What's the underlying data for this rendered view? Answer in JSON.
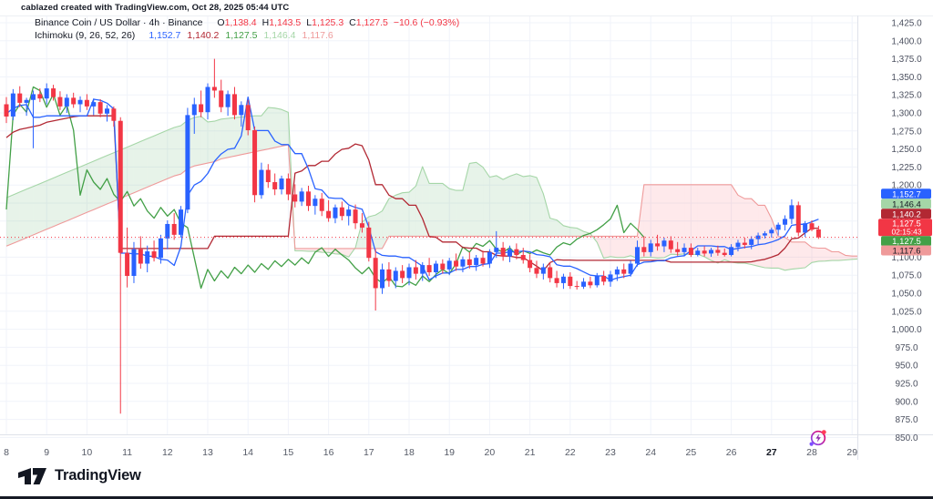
{
  "attribution": "cablazed created with TradingView.com, Oct 28, 2025 05:44 UTC",
  "legend": {
    "title": "Binance Coin / US Dollar · 4h · Binance",
    "ohlc": [
      {
        "label": "O",
        "value": "1,138.4"
      },
      {
        "label": "H",
        "value": "1,143.5"
      },
      {
        "label": "L",
        "value": "1,125.3"
      },
      {
        "label": "C",
        "value": "1,127.5"
      }
    ],
    "change": "−10.6 (−0.93%)",
    "indicator": {
      "name": "Ichimoku (9, 26, 52, 26)",
      "values": [
        {
          "name": "conversion-line",
          "text": "1,152.7",
          "color": "#2962FF"
        },
        {
          "name": "base-line",
          "text": "1,140.2",
          "color": "#B22833"
        },
        {
          "name": "lagging-span",
          "text": "1,127.5",
          "color": "#43A047"
        },
        {
          "name": "leading-span-a",
          "text": "1,146.4",
          "color": "#A5D6A7"
        },
        {
          "name": "leading-span-b",
          "text": "1,117.6",
          "color": "#EF9A9A"
        }
      ]
    }
  },
  "price_axis": {
    "labels": [
      "1,425.0",
      "1,400.0",
      "1,375.0",
      "1,350.0",
      "1,325.0",
      "1,300.0",
      "1,275.0",
      "1,250.0",
      "1,225.0",
      "1,200.0",
      "1,175.0",
      "1,150.0",
      "1,125.0",
      "1,100.0",
      "1,075.0",
      "1,050.0",
      "1,025.0",
      "1,000.0",
      "975.0",
      "950.0",
      "925.0",
      "900.0",
      "875.0",
      "850.0"
    ],
    "max": 1425,
    "min": 850,
    "step": 25
  },
  "time_axis": {
    "labels": [
      "8",
      "9",
      "10",
      "11",
      "12",
      "13",
      "14",
      "15",
      "16",
      "17",
      "18",
      "19",
      "20",
      "21",
      "22",
      "23",
      "24",
      "25",
      "26",
      "27",
      "28",
      "29"
    ],
    "bold_label": "27"
  },
  "price_tags": [
    {
      "name": "conversion-tag",
      "text": "1,152.7",
      "bg": "#2962FF",
      "fg": "#FFFFFF"
    },
    {
      "name": "leading-a-tag",
      "text": "1,146.4",
      "bg": "#A5D6A7",
      "fg": "#131722"
    },
    {
      "name": "base-tag",
      "text": "1,140.2",
      "bg": "#B22833",
      "fg": "#FFFFFF"
    },
    {
      "name": "last-price-tag",
      "text": "1,127.5",
      "countdown": "02:15:43",
      "bg": "#F23645",
      "fg": "#FFFFFF"
    },
    {
      "name": "lagging-tag",
      "text": "1,127.5",
      "bg": "#43A047",
      "fg": "#FFFFFF"
    },
    {
      "name": "leading-b-tag",
      "text": "1,117.6",
      "bg": "#EF9A9A",
      "fg": "#131722"
    }
  ],
  "branding": {
    "logo_text": "TradingView"
  },
  "chart_data": {
    "type": "candlestick",
    "timeframe": "4h",
    "last_price": 1127.5,
    "prev_close": 1138.1,
    "up_color": "#2962FF",
    "down_color": "#F23645",
    "indicator": {
      "type": "ichimoku",
      "params": [
        9,
        26,
        52,
        26
      ],
      "displacement": 26,
      "conversion": 1152.7,
      "base": 1140.2,
      "lagging": 1127.5,
      "leading_a": 1146.4,
      "leading_b": 1117.6,
      "colors": {
        "conversion": "#2962FF",
        "base": "#B22833",
        "lagging": "#43A047",
        "leading_a": "#A5D6A7",
        "leading_b": "#EF9A9A",
        "cloud_up": "rgba(103,183,119,0.16)",
        "cloud_down": "rgba(242,54,69,0.11)"
      }
    },
    "candles_ohlc": [
      [
        1312,
        1322,
        1286,
        1295
      ],
      [
        1295,
        1333,
        1290,
        1327
      ],
      [
        1327,
        1337,
        1308,
        1314
      ],
      [
        1314,
        1321,
        1296,
        1318
      ],
      [
        1318,
        1331,
        1251,
        1326
      ],
      [
        1326,
        1334,
        1315,
        1320
      ],
      [
        1320,
        1341,
        1312,
        1334
      ],
      [
        1334,
        1339,
        1317,
        1322
      ],
      [
        1322,
        1330,
        1304,
        1309
      ],
      [
        1309,
        1326,
        1300,
        1321
      ],
      [
        1321,
        1328,
        1307,
        1312
      ],
      [
        1312,
        1323,
        1301,
        1318
      ],
      [
        1318,
        1326,
        1304,
        1309
      ],
      [
        1309,
        1320,
        1297,
        1315
      ],
      [
        1315,
        1319,
        1294,
        1299
      ],
      [
        1299,
        1311,
        1288,
        1306
      ],
      [
        1306,
        1309,
        1281,
        1289
      ],
      [
        1289,
        1294,
        883,
        1106
      ],
      [
        1106,
        1141,
        1058,
        1074
      ],
      [
        1074,
        1121,
        1064,
        1111
      ],
      [
        1111,
        1129,
        1084,
        1091
      ],
      [
        1091,
        1116,
        1079,
        1108
      ],
      [
        1108,
        1123,
        1094,
        1099
      ],
      [
        1099,
        1131,
        1091,
        1126
      ],
      [
        1126,
        1151,
        1111,
        1146
      ],
      [
        1146,
        1161,
        1124,
        1131
      ],
      [
        1131,
        1171,
        1127,
        1166
      ],
      [
        1166,
        1307,
        1161,
        1297
      ],
      [
        1297,
        1321,
        1271,
        1312
      ],
      [
        1312,
        1331,
        1294,
        1301
      ],
      [
        1301,
        1341,
        1291,
        1336
      ],
      [
        1336,
        1375,
        1321,
        1331
      ],
      [
        1331,
        1346,
        1301,
        1308
      ],
      [
        1308,
        1331,
        1296,
        1326
      ],
      [
        1326,
        1336,
        1291,
        1297
      ],
      [
        1297,
        1316,
        1281,
        1311
      ],
      [
        1311,
        1318,
        1269,
        1276
      ],
      [
        1276,
        1281,
        1176,
        1186
      ],
      [
        1186,
        1231,
        1181,
        1221
      ],
      [
        1221,
        1229,
        1196,
        1204
      ],
      [
        1204,
        1216,
        1186,
        1194
      ],
      [
        1194,
        1213,
        1187,
        1209
      ],
      [
        1209,
        1216,
        1179,
        1187
      ],
      [
        1187,
        1201,
        1169,
        1177
      ],
      [
        1177,
        1196,
        1171,
        1191
      ],
      [
        1191,
        1199,
        1164,
        1171
      ],
      [
        1171,
        1186,
        1159,
        1181
      ],
      [
        1181,
        1189,
        1157,
        1164
      ],
      [
        1164,
        1179,
        1149,
        1154
      ],
      [
        1154,
        1173,
        1147,
        1169
      ],
      [
        1169,
        1177,
        1151,
        1157
      ],
      [
        1157,
        1171,
        1144,
        1166
      ],
      [
        1166,
        1173,
        1139,
        1147
      ],
      [
        1147,
        1161,
        1134,
        1141
      ],
      [
        1141,
        1149,
        1094,
        1099
      ],
      [
        1099,
        1111,
        1026,
        1057
      ],
      [
        1057,
        1091,
        1049,
        1083
      ],
      [
        1083,
        1093,
        1059,
        1067
      ],
      [
        1067,
        1086,
        1057,
        1081
      ],
      [
        1081,
        1089,
        1064,
        1071
      ],
      [
        1071,
        1091,
        1061,
        1086
      ],
      [
        1086,
        1096,
        1069,
        1077
      ],
      [
        1077,
        1093,
        1067,
        1089
      ],
      [
        1089,
        1099,
        1074,
        1079
      ],
      [
        1079,
        1095,
        1071,
        1091
      ],
      [
        1091,
        1097,
        1077,
        1083
      ],
      [
        1083,
        1099,
        1075,
        1095
      ],
      [
        1095,
        1105,
        1081,
        1087
      ],
      [
        1087,
        1101,
        1079,
        1097
      ],
      [
        1097,
        1107,
        1084,
        1089
      ],
      [
        1089,
        1103,
        1081,
        1099
      ],
      [
        1099,
        1109,
        1087,
        1091
      ],
      [
        1091,
        1111,
        1085,
        1107
      ],
      [
        1107,
        1136,
        1099,
        1113
      ],
      [
        1113,
        1121,
        1095,
        1101
      ],
      [
        1101,
        1116,
        1093,
        1111
      ],
      [
        1111,
        1119,
        1097,
        1103
      ],
      [
        1103,
        1113,
        1091,
        1096
      ],
      [
        1096,
        1104,
        1079,
        1085
      ],
      [
        1085,
        1095,
        1071,
        1077
      ],
      [
        1077,
        1091,
        1069,
        1086
      ],
      [
        1086,
        1093,
        1065,
        1071
      ],
      [
        1071,
        1081,
        1058,
        1064
      ],
      [
        1064,
        1077,
        1056,
        1073
      ],
      [
        1073,
        1079,
        1056,
        1060
      ],
      [
        1060,
        1067,
        1055.1,
        1059
      ],
      [
        1059,
        1071,
        1056,
        1066
      ],
      [
        1066,
        1073,
        1057,
        1061
      ],
      [
        1061,
        1078,
        1058,
        1074
      ],
      [
        1074,
        1081,
        1061,
        1066
      ],
      [
        1066,
        1081,
        1059,
        1076
      ],
      [
        1076,
        1087,
        1067,
        1083
      ],
      [
        1083,
        1091,
        1071,
        1077
      ],
      [
        1077,
        1095,
        1073,
        1091
      ],
      [
        1091,
        1123,
        1087,
        1114
      ],
      [
        1114,
        1129,
        1101,
        1107
      ],
      [
        1107,
        1124,
        1101,
        1119
      ],
      [
        1119,
        1131,
        1109,
        1115
      ],
      [
        1115,
        1127,
        1107,
        1123
      ],
      [
        1123,
        1129,
        1106,
        1111
      ],
      [
        1111,
        1121,
        1102,
        1107
      ],
      [
        1107,
        1119,
        1101,
        1113
      ],
      [
        1113,
        1119,
        1100.3,
        1103
      ],
      [
        1103,
        1113,
        1101,
        1109
      ],
      [
        1109,
        1115,
        1101,
        1105
      ],
      [
        1105,
        1113,
        1100.5,
        1110
      ],
      [
        1110,
        1116,
        1102,
        1106
      ],
      [
        1106,
        1112,
        1100.8,
        1103
      ],
      [
        1103,
        1118,
        1101,
        1114
      ],
      [
        1114,
        1124,
        1108,
        1120
      ],
      [
        1120,
        1127,
        1112,
        1117
      ],
      [
        1117,
        1129,
        1111,
        1125
      ],
      [
        1125,
        1134,
        1118,
        1130
      ],
      [
        1130,
        1136,
        1126,
        1133
      ],
      [
        1133,
        1141,
        1127,
        1138
      ],
      [
        1138,
        1148,
        1130,
        1145
      ],
      [
        1145,
        1158,
        1137,
        1153
      ],
      [
        1153,
        1180.1,
        1146,
        1172
      ],
      [
        1172,
        1177,
        1129,
        1134
      ],
      [
        1134,
        1150,
        1128,
        1147
      ],
      [
        1147,
        1151,
        1136,
        1138.1
      ],
      [
        1138.4,
        1143.5,
        1125.3,
        1127.5
      ]
    ]
  }
}
